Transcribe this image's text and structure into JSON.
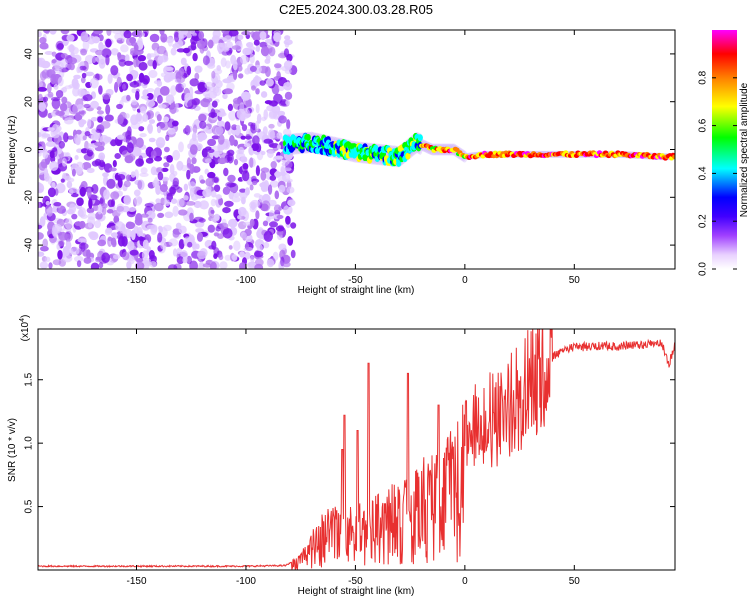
{
  "title": "C2E5.2024.300.03.28.R05",
  "chart_data": [
    {
      "type": "heatmap",
      "xlabel": "Height of straight line (km)",
      "ylabel": "Frequency (Hz)",
      "xlim": [
        -195,
        96
      ],
      "ylim": [
        -50,
        50
      ],
      "xticks": [
        -150,
        -100,
        -50,
        0,
        50
      ],
      "yticks": [
        -40,
        -20,
        0,
        20,
        40
      ],
      "xtick_labels": [
        "-150",
        "-100",
        "-50",
        "0",
        "50"
      ],
      "ytick_labels": [
        "-40",
        "-20",
        "0",
        "20",
        "40"
      ],
      "colorbar": {
        "label": "Normalized spectral amplitude",
        "range": [
          0,
          1
        ],
        "ticks": [
          0.0,
          0.2,
          0.4,
          0.6,
          0.8
        ],
        "tick_labels": [
          "0.0",
          "0.2",
          "0.4",
          "0.6",
          "0.8"
        ],
        "colors": [
          "#ffffff",
          "#d9b3ff",
          "#8000ff",
          "#0000ff",
          "#00ffff",
          "#00ff00",
          "#ffff00",
          "#ff8000",
          "#ff0000",
          "#ff00ff"
        ]
      },
      "noise_region_x": [
        -195,
        -82
      ],
      "signal_track": [
        {
          "x": -82,
          "y": 2
        },
        {
          "x": -70,
          "y": 3
        },
        {
          "x": -60,
          "y": 1
        },
        {
          "x": -50,
          "y": -1
        },
        {
          "x": -40,
          "y": -2
        },
        {
          "x": -30,
          "y": -3
        },
        {
          "x": -22,
          "y": 3
        },
        {
          "x": -15,
          "y": 0
        },
        {
          "x": -5,
          "y": 0
        },
        {
          "x": 0,
          "y": -3
        },
        {
          "x": 10,
          "y": -2
        },
        {
          "x": 25,
          "y": -2
        },
        {
          "x": 50,
          "y": -2
        },
        {
          "x": 70,
          "y": -2
        },
        {
          "x": 90,
          "y": -3
        }
      ]
    },
    {
      "type": "line",
      "xlabel": "Height of straight line (km)",
      "ylabel": "SNR (10 * v/v)",
      "y_multiplier": "(x10",
      "y_multiplier_exp": "4",
      "y_multiplier_close": ")",
      "xlim": [
        -195,
        96
      ],
      "ylim": [
        0,
        19000
      ],
      "xticks": [
        -150,
        -100,
        -50,
        0,
        50
      ],
      "yticks": [
        5000,
        10000,
        15000
      ],
      "xtick_labels": [
        "-150",
        "-100",
        "-50",
        "0",
        "50"
      ],
      "ytick_labels": [
        "0.5",
        "1.0",
        "1.5"
      ],
      "line_color": "#e83030",
      "series": [
        {
          "x": [
            -195,
            -150,
            -100,
            -82,
            -78,
            -75,
            -70,
            -65,
            -60,
            -55,
            -50,
            -45,
            -40,
            -35,
            -30,
            -25,
            -20,
            -15,
            -12,
            -10,
            -5,
            0,
            5,
            10,
            15,
            20,
            25,
            30,
            35,
            40,
            45,
            50,
            60,
            70,
            80,
            90,
            93,
            96
          ],
          "values": [
            300,
            300,
            300,
            350,
            700,
            1000,
            2400,
            3600,
            4000,
            3500,
            4200,
            4300,
            4800,
            5000,
            5600,
            5700,
            6700,
            7500,
            7100,
            7000,
            9600,
            10500,
            11500,
            12000,
            12300,
            13400,
            14100,
            15000,
            16000,
            17100,
            17700,
            17900,
            18000,
            18000,
            18100,
            18200,
            16500,
            18000
          ]
        }
      ],
      "spikes": [
        {
          "x": -56,
          "y": 9500
        },
        {
          "x": -55,
          "y": 12200
        },
        {
          "x": -49,
          "y": 11000
        },
        {
          "x": -44,
          "y": 16300
        },
        {
          "x": -26,
          "y": 15500
        },
        {
          "x": -12,
          "y": 13000
        }
      ]
    }
  ]
}
